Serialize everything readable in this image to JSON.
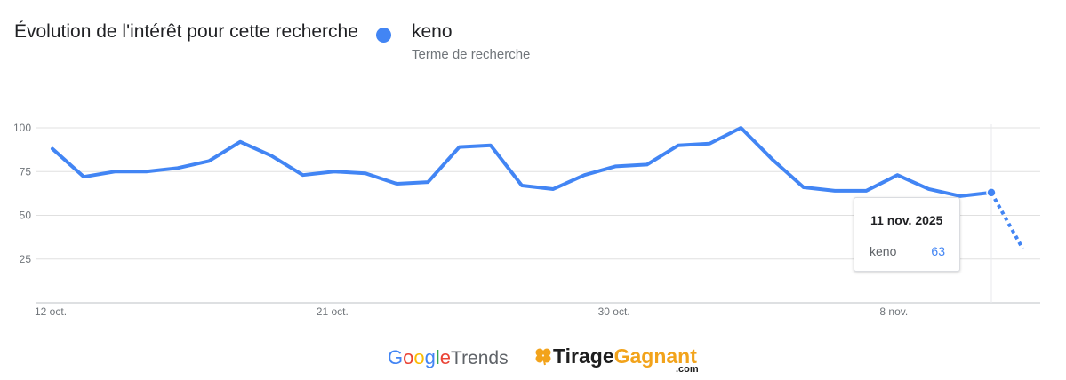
{
  "header": {
    "title": "Évolution de l'intérêt pour cette recherche",
    "legend_term": "keno",
    "legend_subtitle": "Terme de recherche"
  },
  "tooltip": {
    "date": "11 nov. 2025",
    "term": "keno",
    "value": "63"
  },
  "footer": {
    "google_letters": [
      "G",
      "o",
      "o",
      "g",
      "l",
      "e"
    ],
    "trends_word": "Trends",
    "site_prefix": "Tirage",
    "site_suffix": "Gagnant",
    "site_tld": ".com"
  },
  "colors": {
    "series": "#4285f4",
    "grid": "#e0e0e0",
    "axis": "#bdc1c6",
    "tick_text": "#70757a"
  },
  "chart_data": {
    "type": "line",
    "title": "Évolution de l'intérêt pour cette recherche",
    "xlabel": "",
    "ylabel": "",
    "ylim": [
      0,
      100
    ],
    "yticks": [
      100,
      75,
      50,
      25
    ],
    "xticks": [
      {
        "label": "12 oct.",
        "index": 0
      },
      {
        "label": "21 oct.",
        "index": 9
      },
      {
        "label": "30 oct.",
        "index": 18
      },
      {
        "label": "8 nov.",
        "index": 27
      }
    ],
    "grid": true,
    "legend": "top-left",
    "series": [
      {
        "name": "keno",
        "values": [
          88,
          72,
          75,
          75,
          77,
          81,
          92,
          84,
          73,
          75,
          74,
          68,
          69,
          89,
          90,
          67,
          65,
          73,
          78,
          79,
          90,
          91,
          100,
          82,
          66,
          64,
          64,
          73,
          65,
          61,
          63
        ],
        "partial_values": [
          63,
          31
        ]
      }
    ],
    "highlight_index": 30,
    "highlight_date": "11 nov. 2025",
    "highlight_value": 63
  }
}
